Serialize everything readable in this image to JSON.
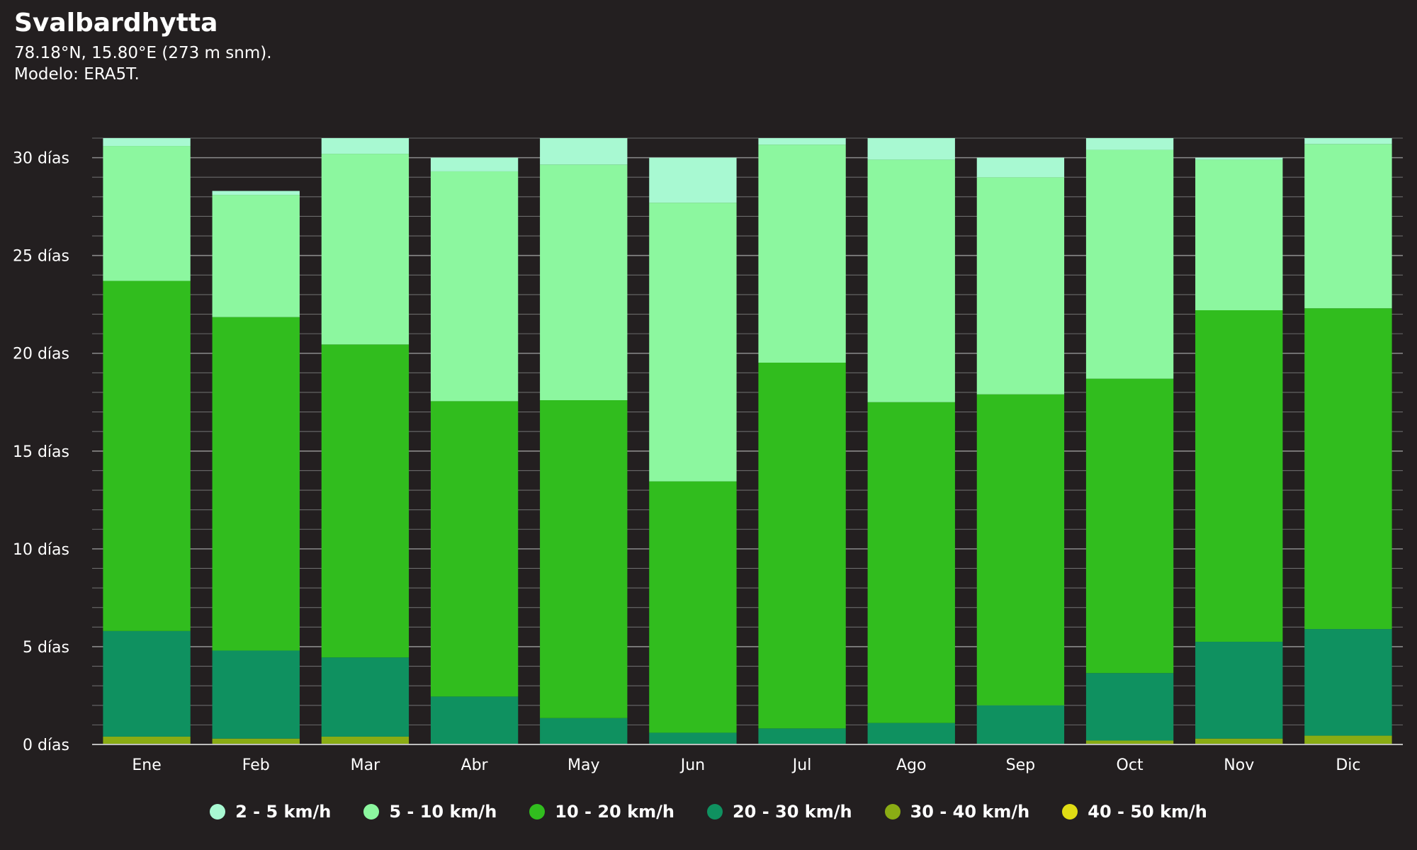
{
  "header": {
    "title": "Svalbardhytta",
    "subtitle_line1": "78.18°N, 15.80°E (273 m snm).",
    "subtitle_line2": "Modelo: ERA5T."
  },
  "chart_data": {
    "type": "bar",
    "stacked": true,
    "categories": [
      "Ene",
      "Feb",
      "Mar",
      "Abr",
      "May",
      "Jun",
      "Jul",
      "Ago",
      "Sep",
      "Oct",
      "Nov",
      "Dic"
    ],
    "ylim": [
      0,
      31
    ],
    "yticks": [
      0,
      5,
      10,
      15,
      20,
      25,
      30
    ],
    "ytick_labels": [
      "0 días",
      "5 días",
      "10 días",
      "15 días",
      "20 días",
      "25 días",
      "30 días"
    ],
    "grid": true,
    "legend_position": "bottom",
    "series": [
      {
        "name": "40 - 50 km/h",
        "color": "#e0dc14",
        "values": [
          0,
          0,
          0,
          0,
          0,
          0,
          0,
          0,
          0,
          0,
          0,
          0
        ]
      },
      {
        "name": "30 - 40 km/h",
        "color": "#8aac14",
        "values": [
          0.4,
          0.3,
          0.4,
          0,
          0,
          0,
          0,
          0,
          0,
          0.2,
          0.3,
          0.45
        ]
      },
      {
        "name": "20 - 30 km/h",
        "color": "#0f9160",
        "values": [
          5.4,
          4.5,
          4.05,
          2.45,
          1.35,
          0.6,
          0.82,
          1.1,
          2.0,
          3.45,
          4.95,
          5.45
        ]
      },
      {
        "name": "10 - 20 km/h",
        "color": "#31bd1e",
        "values": [
          17.9,
          17.05,
          16.0,
          15.1,
          16.25,
          12.85,
          18.7,
          16.4,
          15.9,
          15.05,
          16.95,
          16.4
        ]
      },
      {
        "name": "5 - 10 km/h",
        "color": "#8cf79f",
        "values": [
          6.9,
          6.25,
          9.75,
          11.75,
          12.05,
          14.25,
          11.15,
          12.4,
          11.1,
          11.7,
          7.7,
          8.4
        ]
      },
      {
        "name": "2 - 5 km/h",
        "color": "#a8f9d2",
        "values": [
          0.4,
          0.2,
          0.8,
          0.7,
          1.35,
          2.3,
          0.33,
          1.1,
          1.0,
          0.6,
          0.1,
          0.3
        ]
      }
    ]
  },
  "legend": [
    {
      "label": "2 - 5 km/h",
      "color": "#a8f9d2"
    },
    {
      "label": "5 - 10 km/h",
      "color": "#8cf79f"
    },
    {
      "label": "10 - 20 km/h",
      "color": "#31bd1e"
    },
    {
      "label": "20 - 30 km/h",
      "color": "#0f9160"
    },
    {
      "label": "30 - 40 km/h",
      "color": "#8aac14"
    },
    {
      "label": "40 - 50 km/h",
      "color": "#e0dc14"
    }
  ]
}
